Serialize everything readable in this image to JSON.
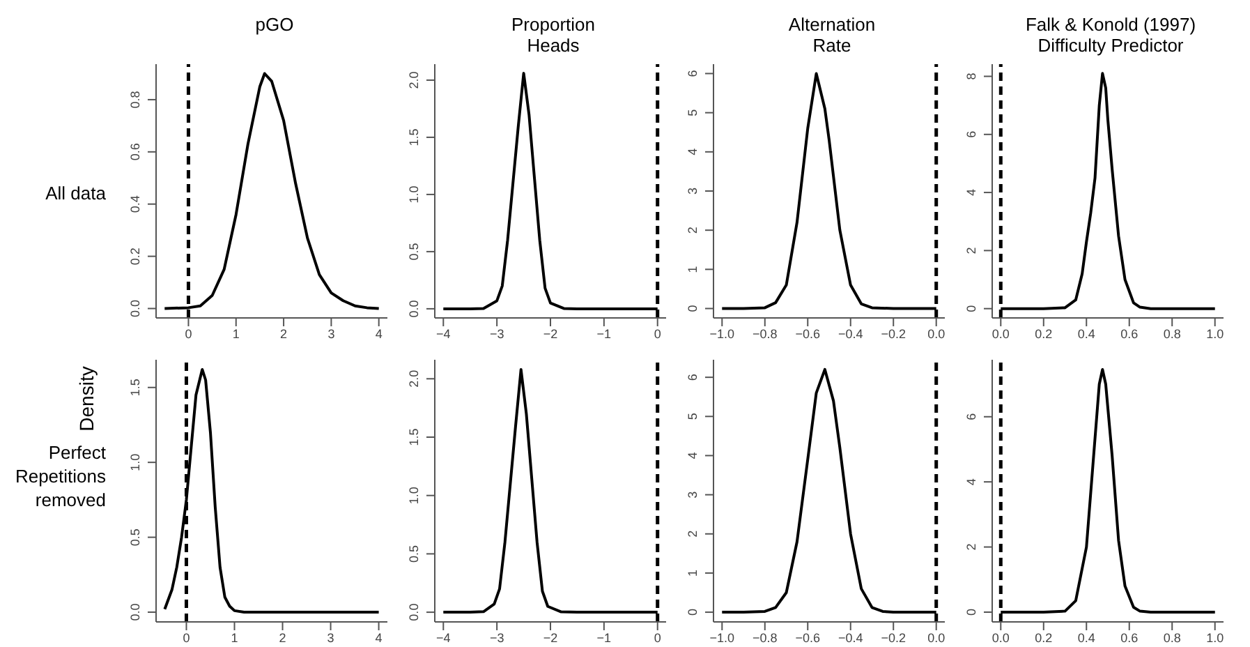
{
  "chart_data": [
    {
      "type": "line",
      "title": "pGO",
      "annotations": [
        "All data"
      ],
      "x": [
        -0.5,
        0,
        0.25,
        0.5,
        0.75,
        1.0,
        1.25,
        1.5,
        1.6,
        1.75,
        2.0,
        2.25,
        2.5,
        2.75,
        3.0,
        3.25,
        3.5,
        3.75,
        4.0
      ],
      "series": [
        {
          "color": "#000000",
          "values": [
            0,
            0.003,
            0.01,
            0.05,
            0.15,
            0.36,
            0.63,
            0.85,
            0.9,
            0.87,
            0.72,
            0.48,
            0.27,
            0.13,
            0.06,
            0.03,
            0.01,
            0.003,
            0
          ]
        }
      ],
      "xlim": [
        -0.68,
        4.18
      ],
      "xticks": [
        0,
        1,
        2,
        3,
        4
      ],
      "ylim": [
        -0.036,
        0.936
      ],
      "yticks": [
        {
          "value": 0,
          "label": "0.0"
        },
        {
          "value": 0.2,
          "label": "0.2"
        },
        {
          "value": 0.4,
          "label": "0.4"
        },
        {
          "value": 0.6,
          "label": "0.6"
        },
        {
          "value": 0.8,
          "label": "0.8"
        }
      ],
      "ref_lines": [
        {
          "axis": "x",
          "value": 0,
          "color": "#000000",
          "line_style": "dashed"
        }
      ],
      "marker": "none",
      "line_style": "solid"
    },
    {
      "type": "line",
      "title": "Proportion\nHeads",
      "x": [
        -4,
        -3.5,
        -3.25,
        -3.0,
        -2.9,
        -2.8,
        -2.7,
        -2.6,
        -2.5,
        -2.4,
        -2.3,
        -2.2,
        -2.1,
        -2.0,
        -1.75,
        -1.5,
        0
      ],
      "series": [
        {
          "color": "#000000",
          "values": [
            0,
            0,
            0.003,
            0.07,
            0.2,
            0.6,
            1.1,
            1.6,
            2.06,
            1.7,
            1.15,
            0.6,
            0.18,
            0.05,
            0.003,
            0,
            0
          ]
        }
      ],
      "xlim": [
        -4.16,
        0.16
      ],
      "xticks": [
        {
          "value": -4,
          "label": "−4"
        },
        {
          "value": -3,
          "label": "−3"
        },
        {
          "value": -2,
          "label": "−2"
        },
        {
          "value": -1,
          "label": "−1"
        },
        0
      ],
      "ylim": [
        -0.08,
        2.14
      ],
      "yticks": [
        {
          "value": 0,
          "label": "0.0"
        },
        {
          "value": 0.5,
          "label": "0.5"
        },
        {
          "value": 1,
          "label": "1.0"
        },
        {
          "value": 1.5,
          "label": "1.5"
        },
        {
          "value": 2,
          "label": "2.0"
        }
      ],
      "ref_lines": [
        {
          "axis": "x",
          "value": 0,
          "color": "#000000",
          "line_style": "dashed"
        }
      ],
      "marker": "none",
      "line_style": "solid"
    },
    {
      "type": "line",
      "title": "Alternation\nRate",
      "x": [
        -1,
        -0.9,
        -0.8,
        -0.75,
        -0.7,
        -0.65,
        -0.6,
        -0.56,
        -0.52,
        -0.5,
        -0.45,
        -0.4,
        -0.35,
        -0.3,
        -0.2,
        0
      ],
      "series": [
        {
          "color": "#000000",
          "values": [
            0,
            0,
            0.02,
            0.15,
            0.6,
            2.2,
            4.6,
            6.0,
            5.1,
            4.3,
            2.0,
            0.6,
            0.12,
            0.02,
            0,
            0
          ]
        }
      ],
      "xlim": [
        -1.04,
        0.04
      ],
      "xticks": [
        {
          "value": -1,
          "label": "−1.0"
        },
        {
          "value": -0.8,
          "label": "−0.8"
        },
        {
          "value": -0.6,
          "label": "−0.6"
        },
        {
          "value": -0.4,
          "label": "−0.4"
        },
        {
          "value": -0.2,
          "label": "−0.2"
        },
        {
          "value": 0,
          "label": "0.0"
        }
      ],
      "ylim": [
        -0.24,
        6.24
      ],
      "yticks": [
        0,
        1,
        2,
        3,
        4,
        5,
        6
      ],
      "ref_lines": [
        {
          "axis": "x",
          "value": 0,
          "color": "#000000",
          "line_style": "dashed"
        }
      ],
      "marker": "none",
      "line_style": "solid"
    },
    {
      "type": "line",
      "title": "Falk & Konold (1997)\nDifficulty Predictor",
      "x": [
        0,
        0.2,
        0.3,
        0.35,
        0.38,
        0.4,
        0.42,
        0.44,
        0.46,
        0.475,
        0.49,
        0.5,
        0.52,
        0.55,
        0.58,
        0.62,
        0.65,
        0.7,
        1
      ],
      "series": [
        {
          "color": "#000000",
          "values": [
            0,
            0,
            0.03,
            0.3,
            1.2,
            2.3,
            3.3,
            4.5,
            7.0,
            8.1,
            7.6,
            6.5,
            4.8,
            2.5,
            1.0,
            0.2,
            0.05,
            0,
            0
          ]
        }
      ],
      "xlim": [
        -0.04,
        1.04
      ],
      "xticks": [
        {
          "value": 0,
          "label": "0.0"
        },
        {
          "value": 0.2,
          "label": "0.2"
        },
        {
          "value": 0.4,
          "label": "0.4"
        },
        {
          "value": 0.6,
          "label": "0.6"
        },
        {
          "value": 0.8,
          "label": "0.8"
        },
        {
          "value": 1,
          "label": "1.0"
        }
      ],
      "ylim": [
        -0.32,
        8.42
      ],
      "yticks": [
        0,
        2,
        4,
        6,
        8
      ],
      "ref_lines": [
        {
          "axis": "x",
          "value": 0,
          "color": "#000000",
          "line_style": "dashed"
        }
      ],
      "marker": "none",
      "line_style": "solid"
    },
    {
      "type": "line",
      "ylabel": "Density",
      "annotations": [
        "Perfect Repetitions removed"
      ],
      "x": [
        -0.45,
        -0.3,
        -0.2,
        -0.1,
        0,
        0.1,
        0.2,
        0.33,
        0.4,
        0.5,
        0.6,
        0.7,
        0.8,
        0.9,
        1.0,
        1.2,
        2,
        3,
        4
      ],
      "series": [
        {
          "color": "#000000",
          "values": [
            0.02,
            0.15,
            0.3,
            0.5,
            0.75,
            1.1,
            1.45,
            1.62,
            1.55,
            1.2,
            0.7,
            0.3,
            0.1,
            0.04,
            0.01,
            0,
            0,
            0,
            0
          ]
        }
      ],
      "xlim": [
        -0.63,
        4.18
      ],
      "xticks": [
        0,
        1,
        2,
        3,
        4
      ],
      "ylim": [
        -0.065,
        1.685
      ],
      "yticks": [
        {
          "value": 0,
          "label": "0.0"
        },
        {
          "value": 0.5,
          "label": "0.5"
        },
        {
          "value": 1,
          "label": "1.0"
        },
        {
          "value": 1.5,
          "label": "1.5"
        }
      ],
      "ref_lines": [
        {
          "axis": "x",
          "value": 0,
          "color": "#000000",
          "line_style": "dashed"
        }
      ],
      "marker": "none",
      "line_style": "solid"
    },
    {
      "type": "line",
      "x": [
        -4,
        -3.5,
        -3.25,
        -3.05,
        -2.95,
        -2.85,
        -2.75,
        -2.65,
        -2.55,
        -2.45,
        -2.35,
        -2.25,
        -2.15,
        -2.05,
        -1.8,
        -1.5,
        0
      ],
      "series": [
        {
          "color": "#000000",
          "values": [
            0,
            0,
            0.005,
            0.07,
            0.2,
            0.6,
            1.1,
            1.6,
            2.08,
            1.7,
            1.15,
            0.6,
            0.18,
            0.05,
            0.003,
            0,
            0
          ]
        }
      ],
      "xlim": [
        -4.16,
        0.16
      ],
      "xticks": [
        {
          "value": -4,
          "label": "−4"
        },
        {
          "value": -3,
          "label": "−3"
        },
        {
          "value": -2,
          "label": "−2"
        },
        {
          "value": -1,
          "label": "−1"
        },
        0
      ],
      "ylim": [
        -0.083,
        2.163
      ],
      "yticks": [
        {
          "value": 0,
          "label": "0.0"
        },
        {
          "value": 0.5,
          "label": "0.5"
        },
        {
          "value": 1,
          "label": "1.0"
        },
        {
          "value": 1.5,
          "label": "1.5"
        },
        {
          "value": 2,
          "label": "2.0"
        }
      ],
      "ref_lines": [
        {
          "axis": "x",
          "value": 0,
          "color": "#000000",
          "line_style": "dashed"
        }
      ],
      "marker": "none",
      "line_style": "solid"
    },
    {
      "type": "line",
      "x": [
        -1,
        -0.9,
        -0.8,
        -0.75,
        -0.7,
        -0.65,
        -0.6,
        -0.56,
        -0.52,
        -0.48,
        -0.45,
        -0.4,
        -0.35,
        -0.3,
        -0.25,
        -0.2,
        0
      ],
      "series": [
        {
          "color": "#000000",
          "values": [
            0,
            0,
            0.02,
            0.12,
            0.5,
            1.8,
            3.9,
            5.6,
            6.2,
            5.4,
            4.2,
            2.0,
            0.6,
            0.12,
            0.02,
            0,
            0
          ]
        }
      ],
      "xlim": [
        -1.04,
        0.04
      ],
      "xticks": [
        {
          "value": -1,
          "label": "−1.0"
        },
        {
          "value": -0.8,
          "label": "−0.8"
        },
        {
          "value": -0.6,
          "label": "−0.6"
        },
        {
          "value": -0.4,
          "label": "−0.4"
        },
        {
          "value": -0.2,
          "label": "−0.2"
        },
        {
          "value": 0,
          "label": "0.0"
        }
      ],
      "ylim": [
        -0.248,
        6.448
      ],
      "yticks": [
        0,
        1,
        2,
        3,
        4,
        5,
        6
      ],
      "ref_lines": [
        {
          "axis": "x",
          "value": 0,
          "color": "#000000",
          "line_style": "dashed"
        }
      ],
      "marker": "none",
      "line_style": "solid"
    },
    {
      "type": "line",
      "x": [
        0,
        0.2,
        0.3,
        0.35,
        0.4,
        0.43,
        0.46,
        0.475,
        0.49,
        0.52,
        0.55,
        0.58,
        0.62,
        0.65,
        0.7,
        1
      ],
      "series": [
        {
          "color": "#000000",
          "values": [
            0,
            0,
            0.03,
            0.35,
            2.0,
            4.5,
            7.0,
            7.45,
            7.0,
            4.8,
            2.2,
            0.8,
            0.15,
            0.03,
            0,
            0
          ]
        }
      ],
      "xlim": [
        -0.04,
        1.04
      ],
      "xticks": [
        {
          "value": 0,
          "label": "0.0"
        },
        {
          "value": 0.2,
          "label": "0.2"
        },
        {
          "value": 0.4,
          "label": "0.4"
        },
        {
          "value": 0.6,
          "label": "0.6"
        },
        {
          "value": 0.8,
          "label": "0.8"
        },
        {
          "value": 1,
          "label": "1.0"
        }
      ],
      "ylim": [
        -0.3,
        7.75
      ],
      "yticks": [
        0,
        2,
        4,
        6
      ],
      "ref_lines": [
        {
          "axis": "x",
          "value": 0,
          "color": "#000000",
          "line_style": "dashed"
        }
      ],
      "marker": "none",
      "line_style": "solid"
    }
  ]
}
